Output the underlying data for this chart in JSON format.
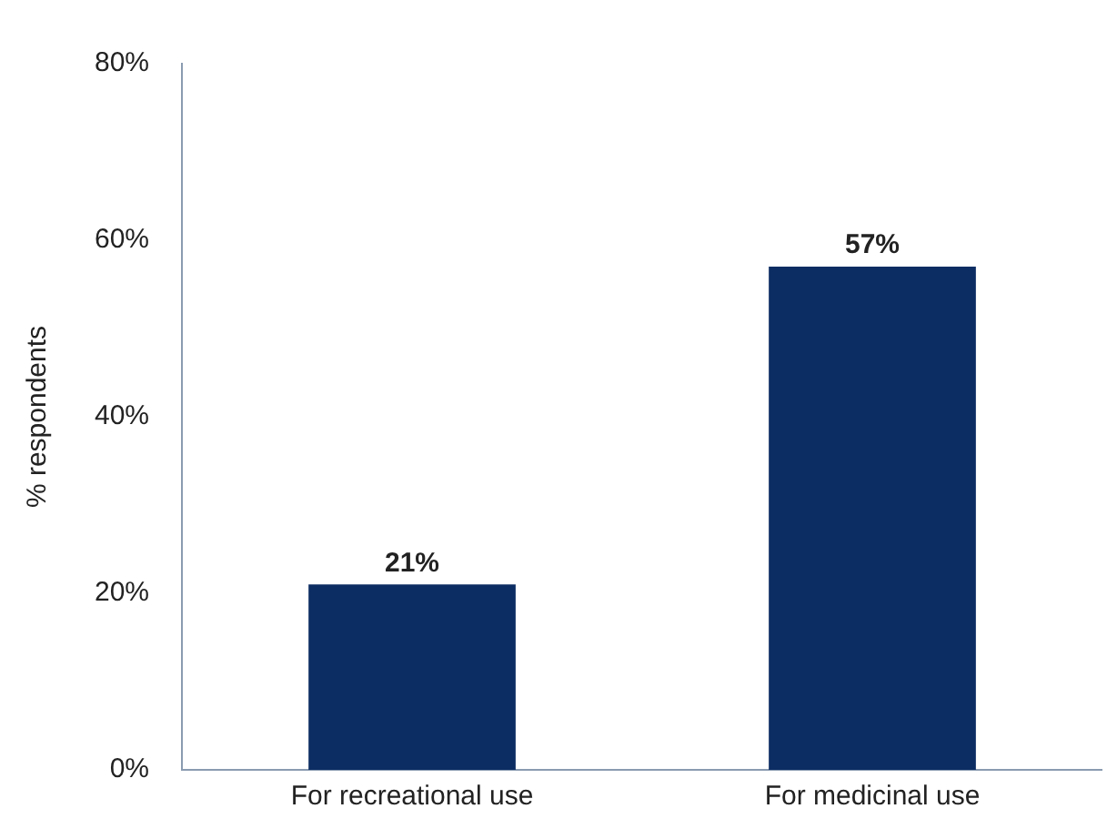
{
  "chart_data": {
    "type": "bar",
    "ylabel": "% respondents",
    "categories": [
      "For recreational use",
      "For medicinal use"
    ],
    "values": [
      21,
      57
    ],
    "color": "#0c2d63",
    "value_labels": [
      "21%",
      "57%"
    ],
    "ylim": [
      0,
      80
    ],
    "yticks": [
      {
        "value": 0,
        "label": "0%"
      },
      {
        "value": 20,
        "label": "20%"
      },
      {
        "value": 40,
        "label": "40%"
      },
      {
        "value": 60,
        "label": "60%"
      },
      {
        "value": 80,
        "label": "80%"
      }
    ]
  }
}
